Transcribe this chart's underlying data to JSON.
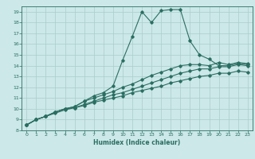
{
  "xlabel": "Humidex (Indice chaleur)",
  "bg_color": "#cce8e8",
  "grid_color": "#aacccc",
  "line_color": "#2a6e62",
  "xlim": [
    -0.5,
    23.5
  ],
  "ylim": [
    8,
    19.5
  ],
  "xticks": [
    0,
    1,
    2,
    3,
    4,
    5,
    6,
    7,
    8,
    9,
    10,
    11,
    12,
    13,
    14,
    15,
    16,
    17,
    18,
    19,
    20,
    21,
    22,
    23
  ],
  "yticks": [
    8,
    9,
    10,
    11,
    12,
    13,
    14,
    15,
    16,
    17,
    18,
    19
  ],
  "line1_x": [
    0,
    1,
    2,
    3,
    4,
    5,
    6,
    7,
    8,
    9,
    10,
    11,
    12,
    13,
    14,
    15,
    16,
    17,
    18,
    19,
    20,
    21,
    22,
    23
  ],
  "line1_y": [
    8.5,
    9.0,
    9.3,
    9.7,
    10.0,
    10.2,
    10.7,
    11.2,
    11.5,
    12.1,
    14.5,
    16.7,
    19.0,
    18.0,
    19.1,
    19.2,
    19.2,
    16.3,
    15.0,
    14.6,
    14.0,
    14.0,
    14.2,
    14.1
  ],
  "line2_x": [
    0,
    1,
    2,
    3,
    4,
    5,
    6,
    7,
    8,
    9,
    10,
    11,
    12,
    13,
    14,
    15,
    16,
    17,
    18,
    19,
    20,
    21,
    22,
    23
  ],
  "line2_y": [
    8.5,
    9.0,
    9.3,
    9.7,
    10.0,
    10.2,
    10.7,
    11.0,
    11.3,
    11.6,
    12.0,
    12.3,
    12.7,
    13.1,
    13.4,
    13.7,
    14.0,
    14.1,
    14.1,
    14.0,
    14.3,
    14.1,
    14.3,
    14.2
  ],
  "line3_x": [
    0,
    1,
    2,
    3,
    4,
    5,
    6,
    7,
    8,
    9,
    10,
    11,
    12,
    13,
    14,
    15,
    16,
    17,
    18,
    19,
    20,
    21,
    22,
    23
  ],
  "line3_y": [
    8.5,
    9.0,
    9.3,
    9.7,
    10.0,
    10.1,
    10.4,
    10.7,
    11.0,
    11.3,
    11.5,
    11.8,
    12.1,
    12.4,
    12.7,
    13.0,
    13.3,
    13.5,
    13.7,
    13.7,
    13.9,
    13.9,
    14.1,
    14.0
  ],
  "line4_x": [
    0,
    1,
    2,
    3,
    4,
    5,
    6,
    7,
    8,
    9,
    10,
    11,
    12,
    13,
    14,
    15,
    16,
    17,
    18,
    19,
    20,
    21,
    22,
    23
  ],
  "line4_y": [
    8.5,
    9.0,
    9.3,
    9.6,
    9.9,
    10.1,
    10.3,
    10.6,
    10.8,
    11.0,
    11.2,
    11.5,
    11.7,
    11.9,
    12.1,
    12.4,
    12.6,
    12.8,
    13.0,
    13.1,
    13.3,
    13.3,
    13.5,
    13.4
  ]
}
